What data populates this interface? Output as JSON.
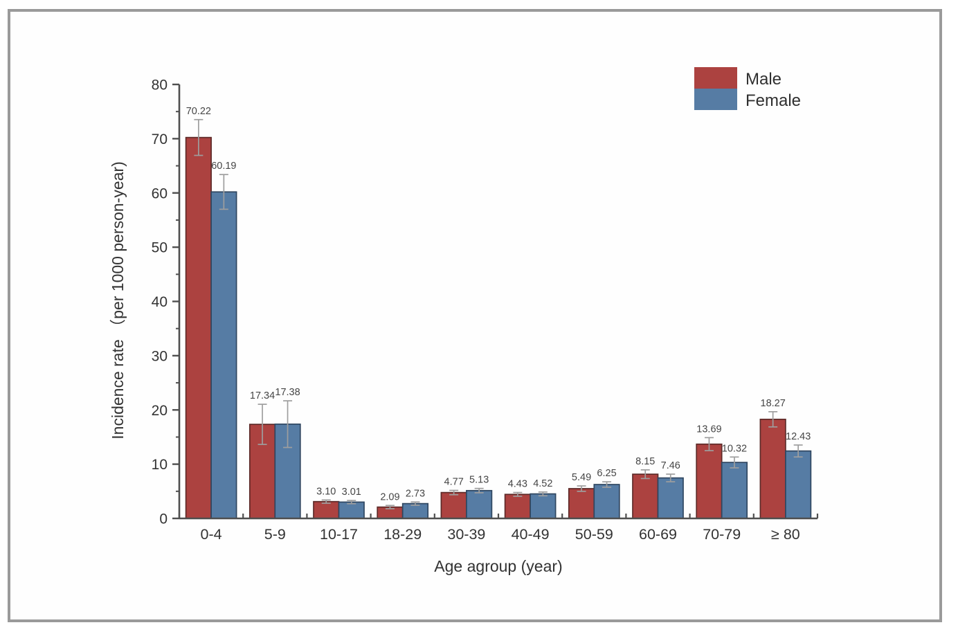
{
  "figure": {
    "frame_border_color": "#9a9a9a",
    "background": "#ffffff"
  },
  "chart_data": {
    "type": "bar",
    "title": "",
    "xlabel": "Age agroup (year)",
    "ylabel": "Incidence rate （per 1000 person-year)",
    "categories": [
      "0-4",
      "5-9",
      "10-17",
      "18-29",
      "30-39",
      "40-49",
      "50-59",
      "60-69",
      "70-79",
      "≥ 80"
    ],
    "series": [
      {
        "name": "Male",
        "color": "#ac4240",
        "border_color": "#5d2a28",
        "values": [
          70.22,
          17.34,
          3.1,
          2.09,
          4.77,
          4.43,
          5.49,
          8.15,
          13.69,
          18.27
        ],
        "labels": [
          "70.22",
          "17.34",
          "3.10",
          "2.09",
          "4.77",
          "4.43",
          "5.49",
          "8.15",
          "13.69",
          "18.27"
        ],
        "errors": [
          3.3,
          3.7,
          0.3,
          0.3,
          0.4,
          0.35,
          0.5,
          0.8,
          1.2,
          1.4
        ]
      },
      {
        "name": "Female",
        "color": "#567ca4",
        "border_color": "#2f4660",
        "values": [
          60.19,
          17.38,
          3.01,
          2.73,
          5.13,
          4.52,
          6.25,
          7.46,
          10.32,
          12.43
        ],
        "labels": [
          "60.19",
          "17.38",
          "3.01",
          "2.73",
          "5.13",
          "4.52",
          "6.25",
          "7.46",
          "10.32",
          "12.43"
        ],
        "errors": [
          3.2,
          4.3,
          0.3,
          0.3,
          0.4,
          0.35,
          0.5,
          0.7,
          1.0,
          1.1
        ]
      }
    ],
    "ylim": [
      0,
      80
    ],
    "ytick_step": 10,
    "yminor_step": 5,
    "yticks": [
      "0",
      "10",
      "20",
      "30",
      "40",
      "50",
      "60",
      "70",
      "80"
    ],
    "legend_position": "top-right",
    "grid": false,
    "error_bar_color": "#9e9e9e",
    "axis_color": "#4f4f4f",
    "text_color": "#333333",
    "value_label_color": "#454545"
  }
}
